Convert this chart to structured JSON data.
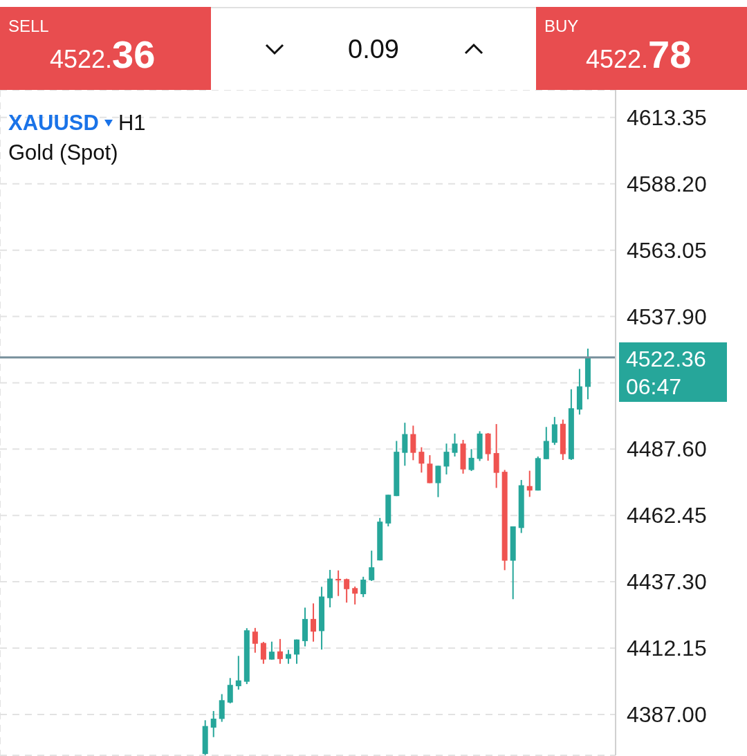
{
  "chart_data": {
    "type": "candlestick",
    "title": "XAUUSD",
    "subtitle": "Gold (Spot)",
    "annotations": [
      "SELL",
      "4522.36",
      "0.09",
      "BUY",
      "4522.78",
      "H1",
      "06:47"
    ],
    "categories": [
      null,
      null,
      null,
      null,
      null,
      null,
      null,
      null,
      null,
      null,
      null,
      null,
      null,
      null,
      null,
      null,
      null,
      null,
      null,
      null,
      null,
      null,
      null,
      null,
      null,
      null,
      null,
      null,
      null,
      null,
      null,
      null,
      null,
      null,
      null,
      null,
      null,
      null,
      null,
      null,
      null,
      null,
      null,
      null,
      null,
      null,
      null
    ],
    "ohlc": [
      [
        4372,
        4384.8,
        4371.6,
        4382.6
      ],
      [
        4382.0,
        4388.3,
        4378.4,
        4385.4
      ],
      [
        4385.3,
        4394.7,
        4384.2,
        4392.4
      ],
      [
        4391.5,
        4400.8,
        4391.2,
        4398.2
      ],
      [
        4397.7,
        4409.2,
        4396.4,
        4399.9
      ],
      [
        4399.4,
        4419.7,
        4398.5,
        4418.9
      ],
      [
        4418.4,
        4419.8,
        4410.4,
        4413.8
      ],
      [
        4414.1,
        4414.5,
        4406.2,
        4407.8
      ],
      [
        4407.8,
        4414.6,
        4407.8,
        4410.8
      ],
      [
        4410.9,
        4415.6,
        4406.2,
        4408.0
      ],
      [
        4408.1,
        4411.5,
        4406.2,
        4409.9
      ],
      [
        4409.7,
        4415.4,
        4406.2,
        4415.4
      ],
      [
        4414.8,
        4427.5,
        4412.8,
        4423.2
      ],
      [
        4423.2,
        4429.1,
        4414.6,
        4418.4
      ],
      [
        4418.6,
        4435.4,
        4411.6,
        4431.7
      ],
      [
        4431.1,
        4441.8,
        4427.6,
        4438.5
      ],
      [
        4438.4,
        4441.6,
        4431.9,
        4437.8
      ],
      [
        4438.3,
        4438.5,
        4429.4,
        4434.5
      ],
      [
        4434.9,
        4435.5,
        4428.7,
        4432.8
      ],
      [
        4432.6,
        4439.2,
        4431.5,
        4438.1
      ],
      [
        4437.9,
        4449.1,
        4437.6,
        4442.8
      ],
      [
        4445.4,
        4461.5,
        4445.4,
        4460.1
      ],
      [
        4459.4,
        4470.3,
        4458.3,
        4470.3
      ],
      [
        4469.8,
        4490.7,
        4469.8,
        4486.6
      ],
      [
        4486.2,
        4497.6,
        4481.3,
        4493.3
      ],
      [
        4493.3,
        4496.5,
        4483.4,
        4486.2
      ],
      [
        4486.6,
        4488.3,
        4478.7,
        4482.1
      ],
      [
        4482.1,
        4485.3,
        4474.7,
        4474.7
      ],
      [
        4474.7,
        4481.3,
        4469.4,
        4481.3
      ],
      [
        4481.0,
        4489.7,
        4478.0,
        4486.6
      ],
      [
        4486.2,
        4493.5,
        4484.8,
        4489.7
      ],
      [
        4489.7,
        4491.1,
        4478.3,
        4479.9
      ],
      [
        4479.7,
        4487.6,
        4479.3,
        4484.3
      ],
      [
        4483.9,
        4494.4,
        4483.1,
        4493.5
      ],
      [
        4493.5,
        4493.7,
        4483.2,
        4485.7
      ],
      [
        4486.1,
        4497.1,
        4472.9,
        4478.6
      ],
      [
        4479.0,
        4479.7,
        4441.7,
        4445.3
      ],
      [
        4445.3,
        4458.3,
        4430.7,
        4458.3
      ],
      [
        4457.7,
        4475.9,
        4455.8,
        4473.9
      ],
      [
        4473.6,
        4479.4,
        4469.5,
        4471.9
      ],
      [
        4471.9,
        4484.8,
        4471.9,
        4484.2
      ],
      [
        4483.8,
        4496.0,
        4483.8,
        4490.7
      ],
      [
        4490.0,
        4499.8,
        4489.2,
        4497.0
      ],
      [
        4497.2,
        4498.8,
        4483.5,
        4485.7
      ],
      [
        4483.8,
        4510.3,
        4483.5,
        4503.1
      ],
      [
        4502.6,
        4518.0,
        4500.7,
        4511.4
      ],
      [
        4511.2,
        4525.7,
        4506.5,
        4522.36
      ]
    ],
    "colors": [
      "#26a69a",
      "#26a69a",
      "#26a69a",
      "#26a69a",
      "#26a69a",
      "#26a69a",
      "#ef5350",
      "#ef5350",
      "#26a69a",
      "#ef5350",
      "#26a69a",
      "#26a69a",
      "#26a69a",
      "#ef5350",
      "#26a69a",
      "#26a69a",
      "#ef5350",
      "#ef5350",
      "#ef5350",
      "#26a69a",
      "#26a69a",
      "#26a69a",
      "#26a69a",
      "#26a69a",
      "#26a69a",
      "#ef5350",
      "#ef5350",
      "#ef5350",
      "#26a69a",
      "#26a69a",
      "#26a69a",
      "#ef5350",
      "#26a69a",
      "#26a69a",
      "#ef5350",
      "#ef5350",
      "#ef5350",
      "#26a69a",
      "#26a69a",
      "#ef5350",
      "#26a69a",
      "#26a69a",
      "#26a69a",
      "#ef5350",
      "#26a69a",
      "#26a69a",
      "#26a69a"
    ],
    "ylim": [
      4371.5,
      4623.8
    ],
    "yticks": [
      {
        "value": 4387,
        "label": "4387.00"
      },
      4412.15,
      {
        "value": 4437.3,
        "label": "4437.30"
      },
      4462.45,
      {
        "value": 4487.6,
        "label": "4487.60"
      },
      {
        "value": 4512.75,
        "label": null
      },
      {
        "value": 4537.9,
        "label": "4537.90"
      },
      4563.05,
      {
        "value": 4588.2,
        "label": "4588.20"
      },
      4613.35
    ],
    "ref_lines": [
      {
        "axis": "y",
        "value": 4522.36,
        "label": "4522.36",
        "color": "#78909c"
      }
    ],
    "grid": true,
    "tick_labels": "y"
  }
}
